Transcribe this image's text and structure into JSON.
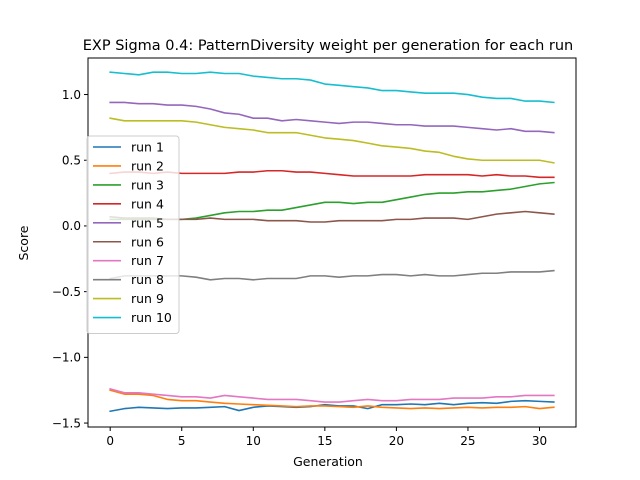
{
  "chart_data": {
    "type": "line",
    "title": "EXP Sigma 0.4: PatternDiversity weight per generation for each run",
    "xlabel": "Generation",
    "ylabel": "Score",
    "xlim": [
      -1.55,
      32.55
    ],
    "ylim": [
      -1.53,
      1.278
    ],
    "xticks": [
      0,
      5,
      10,
      15,
      20,
      25,
      30
    ],
    "yticks": [
      -1.5,
      -1.0,
      -0.5,
      0.0,
      0.5,
      1.0
    ],
    "ytick_labels": [
      "−1.5",
      "−1.0",
      "−0.5",
      "0.0",
      "0.5",
      "1.0"
    ],
    "grid": false,
    "legend_position": "center-left",
    "x": [
      0,
      1,
      2,
      3,
      4,
      5,
      6,
      7,
      8,
      9,
      10,
      11,
      12,
      13,
      14,
      15,
      16,
      17,
      18,
      19,
      20,
      21,
      22,
      23,
      24,
      25,
      26,
      27,
      28,
      29,
      30,
      31
    ],
    "series": [
      {
        "name": "run 1",
        "color": "#1f77b4",
        "values": [
          -1.41,
          -1.39,
          -1.38,
          -1.385,
          -1.39,
          -1.385,
          -1.385,
          -1.38,
          -1.375,
          -1.405,
          -1.38,
          -1.37,
          -1.375,
          -1.38,
          -1.375,
          -1.36,
          -1.37,
          -1.37,
          -1.39,
          -1.36,
          -1.36,
          -1.355,
          -1.36,
          -1.35,
          -1.36,
          -1.35,
          -1.345,
          -1.35,
          -1.335,
          -1.33,
          -1.335,
          -1.34
        ]
      },
      {
        "name": "run 2",
        "color": "#ff7f0e",
        "values": [
          -1.25,
          -1.28,
          -1.28,
          -1.29,
          -1.32,
          -1.33,
          -1.33,
          -1.34,
          -1.35,
          -1.355,
          -1.36,
          -1.365,
          -1.37,
          -1.375,
          -1.37,
          -1.37,
          -1.375,
          -1.38,
          -1.37,
          -1.38,
          -1.385,
          -1.39,
          -1.385,
          -1.39,
          -1.385,
          -1.38,
          -1.385,
          -1.38,
          -1.38,
          -1.375,
          -1.39,
          -1.38
        ]
      },
      {
        "name": "run 3",
        "color": "#2ca02c",
        "values": [
          0.05,
          0.05,
          0.05,
          0.05,
          0.05,
          0.05,
          0.06,
          0.08,
          0.1,
          0.11,
          0.11,
          0.12,
          0.12,
          0.14,
          0.16,
          0.18,
          0.18,
          0.17,
          0.18,
          0.18,
          0.2,
          0.22,
          0.24,
          0.25,
          0.25,
          0.26,
          0.26,
          0.27,
          0.28,
          0.3,
          0.32,
          0.33
        ]
      },
      {
        "name": "run 4",
        "color": "#d62728",
        "values": [
          0.4,
          0.41,
          0.41,
          0.4,
          0.41,
          0.4,
          0.4,
          0.4,
          0.4,
          0.41,
          0.41,
          0.42,
          0.42,
          0.41,
          0.41,
          0.4,
          0.39,
          0.38,
          0.38,
          0.38,
          0.38,
          0.38,
          0.39,
          0.39,
          0.39,
          0.39,
          0.38,
          0.39,
          0.38,
          0.38,
          0.37,
          0.37
        ]
      },
      {
        "name": "run 5",
        "color": "#9467bd",
        "values": [
          0.94,
          0.94,
          0.93,
          0.93,
          0.92,
          0.92,
          0.91,
          0.89,
          0.86,
          0.85,
          0.82,
          0.82,
          0.8,
          0.81,
          0.8,
          0.79,
          0.78,
          0.79,
          0.79,
          0.78,
          0.77,
          0.77,
          0.76,
          0.76,
          0.76,
          0.75,
          0.74,
          0.73,
          0.74,
          0.72,
          0.72,
          0.71
        ]
      },
      {
        "name": "run 6",
        "color": "#8c564b",
        "values": [
          0.07,
          0.06,
          0.06,
          0.06,
          0.05,
          0.05,
          0.05,
          0.06,
          0.05,
          0.05,
          0.05,
          0.04,
          0.04,
          0.04,
          0.03,
          0.03,
          0.04,
          0.04,
          0.04,
          0.04,
          0.05,
          0.05,
          0.06,
          0.06,
          0.06,
          0.05,
          0.07,
          0.09,
          0.1,
          0.11,
          0.1,
          0.09
        ]
      },
      {
        "name": "run 7",
        "color": "#e377c2",
        "values": [
          -1.24,
          -1.27,
          -1.27,
          -1.28,
          -1.29,
          -1.3,
          -1.3,
          -1.31,
          -1.29,
          -1.3,
          -1.31,
          -1.32,
          -1.32,
          -1.32,
          -1.33,
          -1.34,
          -1.34,
          -1.33,
          -1.32,
          -1.33,
          -1.33,
          -1.32,
          -1.32,
          -1.32,
          -1.31,
          -1.31,
          -1.31,
          -1.3,
          -1.3,
          -1.29,
          -1.29,
          -1.29
        ]
      },
      {
        "name": "run 8",
        "color": "#7f7f7f",
        "values": [
          -0.4,
          -0.38,
          -0.38,
          -0.38,
          -0.38,
          -0.38,
          -0.39,
          -0.41,
          -0.4,
          -0.4,
          -0.41,
          -0.4,
          -0.4,
          -0.4,
          -0.38,
          -0.38,
          -0.39,
          -0.38,
          -0.38,
          -0.37,
          -0.37,
          -0.38,
          -0.37,
          -0.38,
          -0.38,
          -0.37,
          -0.36,
          -0.36,
          -0.35,
          -0.35,
          -0.35,
          -0.34
        ]
      },
      {
        "name": "run 9",
        "color": "#bcbd22",
        "values": [
          0.82,
          0.8,
          0.8,
          0.8,
          0.8,
          0.8,
          0.79,
          0.77,
          0.75,
          0.74,
          0.73,
          0.71,
          0.71,
          0.71,
          0.69,
          0.67,
          0.66,
          0.65,
          0.63,
          0.61,
          0.6,
          0.59,
          0.57,
          0.56,
          0.53,
          0.51,
          0.5,
          0.5,
          0.5,
          0.5,
          0.5,
          0.48
        ]
      },
      {
        "name": "run 10",
        "color": "#17becf",
        "values": [
          1.17,
          1.16,
          1.15,
          1.17,
          1.17,
          1.16,
          1.16,
          1.17,
          1.16,
          1.16,
          1.14,
          1.13,
          1.12,
          1.12,
          1.11,
          1.08,
          1.07,
          1.06,
          1.05,
          1.03,
          1.03,
          1.02,
          1.01,
          1.01,
          1.01,
          1.0,
          0.98,
          0.97,
          0.97,
          0.95,
          0.95,
          0.94
        ]
      }
    ]
  }
}
